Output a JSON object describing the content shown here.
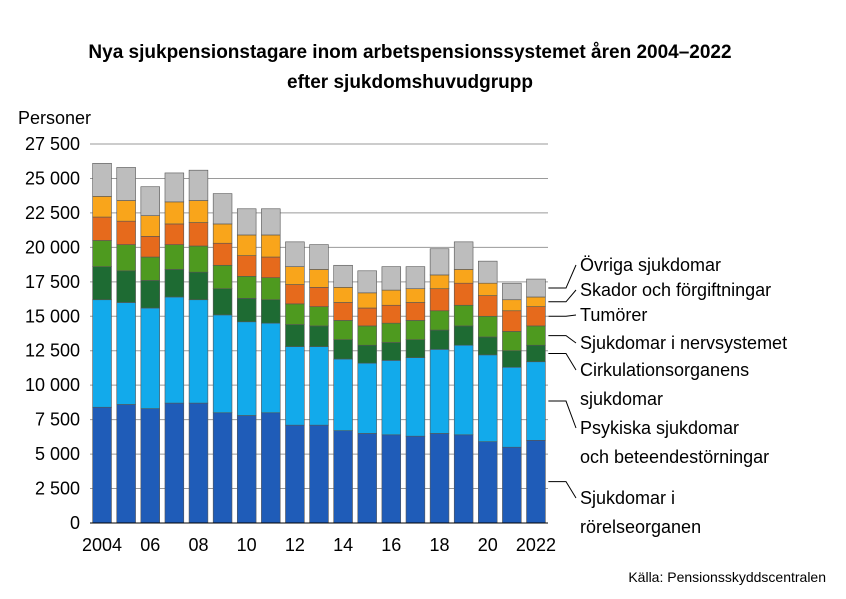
{
  "chart_data": {
    "type": "bar",
    "stacked": true,
    "title_line1": "Nya sjukpensionstagare inom arbetspensionssystemet åren 2004–2022",
    "title_line2": "efter sjukdomshuvudgrupp",
    "ylabel": "Personer",
    "ylim": [
      0,
      27500
    ],
    "grid": true,
    "legend_placement": "right",
    "yticks": [
      {
        "value": 0,
        "label": "0"
      },
      {
        "value": 2500,
        "label": "2 500"
      },
      {
        "value": 5000,
        "label": "5 000"
      },
      {
        "value": 7500,
        "label": "7 500"
      },
      {
        "value": 10000,
        "label": "10 000"
      },
      {
        "value": 12500,
        "label": "12 500"
      },
      {
        "value": 15000,
        "label": "15 000"
      },
      {
        "value": 17500,
        "label": "17 500"
      },
      {
        "value": 20000,
        "label": "20 000"
      },
      {
        "value": 22500,
        "label": "22 500"
      },
      {
        "value": 25000,
        "label": "25 000"
      },
      {
        "value": 27500,
        "label": "27 500"
      }
    ],
    "categories": [
      "2004",
      "2005",
      "2006",
      "2007",
      "2008",
      "2009",
      "2010",
      "2011",
      "2012",
      "2013",
      "2014",
      "2015",
      "2016",
      "2017",
      "2018",
      "2019",
      "2020",
      "2021",
      "2022"
    ],
    "xtick_labels": [
      {
        "index": 0,
        "label": "2004"
      },
      {
        "index": 2,
        "label": "06"
      },
      {
        "index": 4,
        "label": "08"
      },
      {
        "index": 6,
        "label": "10"
      },
      {
        "index": 8,
        "label": "12"
      },
      {
        "index": 10,
        "label": "14"
      },
      {
        "index": 12,
        "label": "16"
      },
      {
        "index": 14,
        "label": "18"
      },
      {
        "index": 16,
        "label": "20"
      },
      {
        "index": 18,
        "label": "2022"
      }
    ],
    "series": [
      {
        "name": "Sjukdomar i rörelseorganen",
        "legend_lines": [
          "Sjukdomar i",
          "rörelseorganen"
        ],
        "color": "#1f5cb8",
        "values": [
          8400,
          8600,
          8300,
          8700,
          8700,
          8000,
          7800,
          8000,
          7100,
          7100,
          6700,
          6500,
          6400,
          6300,
          6500,
          6400,
          5900,
          5500,
          6000
        ]
      },
      {
        "name": "Psykiska sjukdomar och beteendestörningar",
        "legend_lines": [
          "Psykiska sjukdomar",
          "och beteendestörningar"
        ],
        "color": "#12aaeb",
        "values": [
          7800,
          7400,
          7300,
          7700,
          7500,
          7100,
          6800,
          6500,
          5700,
          5700,
          5200,
          5100,
          5400,
          5700,
          6100,
          6500,
          6300,
          5800,
          5700
        ]
      },
      {
        "name": "Cirkulationsorganens sjukdomar",
        "legend_lines": [
          "Cirkulationsorganens",
          "sjukdomar"
        ],
        "color": "#1e6b33",
        "values": [
          2400,
          2300,
          2000,
          2000,
          2000,
          1900,
          1700,
          1700,
          1600,
          1500,
          1400,
          1300,
          1300,
          1300,
          1400,
          1400,
          1300,
          1200,
          1200
        ]
      },
      {
        "name": "Sjukdomar i nervsystemet",
        "legend_lines": [
          "Sjukdomar i nervsystemet"
        ],
        "color": "#4e9a1f",
        "values": [
          1900,
          1900,
          1700,
          1800,
          1900,
          1700,
          1600,
          1600,
          1500,
          1400,
          1400,
          1400,
          1400,
          1400,
          1400,
          1500,
          1500,
          1400,
          1400
        ]
      },
      {
        "name": "Tumörer",
        "legend_lines": [
          "Tumörer"
        ],
        "color": "#e66a1c",
        "values": [
          1700,
          1700,
          1500,
          1500,
          1700,
          1600,
          1500,
          1500,
          1400,
          1400,
          1300,
          1300,
          1300,
          1300,
          1600,
          1600,
          1500,
          1500,
          1400
        ]
      },
      {
        "name": "Skador och förgiftningar",
        "legend_lines": [
          "Skador och förgiftningar"
        ],
        "color": "#f9a51b",
        "values": [
          1500,
          1500,
          1500,
          1600,
          1600,
          1400,
          1500,
          1600,
          1300,
          1300,
          1100,
          1100,
          1100,
          1000,
          1000,
          1000,
          900,
          800,
          700
        ]
      },
      {
        "name": "Övriga sjukdomar",
        "legend_lines": [
          "Övriga sjukdomar"
        ],
        "color": "#bdbdbd",
        "values": [
          2400,
          2400,
          2100,
          2100,
          2200,
          2200,
          1900,
          1900,
          1800,
          1800,
          1600,
          1600,
          1700,
          1600,
          1900,
          2000,
          1600,
          1200,
          1300
        ]
      }
    ],
    "source": "Källa: Pensionsskyddscentralen"
  }
}
